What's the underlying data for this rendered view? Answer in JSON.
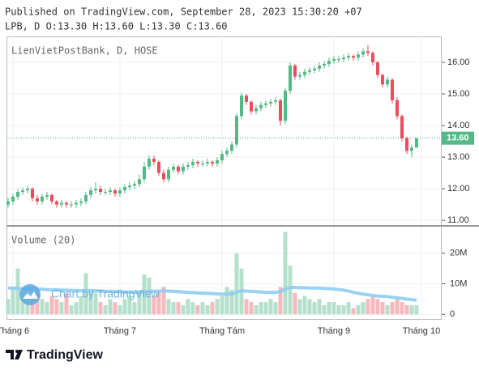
{
  "header": {
    "published": "Published on TradingView.com, September 28, 2023 15:30:20 +07",
    "ohlc": "LPB, D O:13.30 H:13.60 L:13.30 C:13.60"
  },
  "chart_data": {
    "type": "candlestick",
    "title": "LienVietPostBank, D, HOSE",
    "open": [
      11.5,
      11.6,
      11.75,
      11.9,
      11.95,
      12.0,
      11.7,
      11.6,
      11.75,
      11.8,
      11.6,
      11.5,
      11.55,
      11.5,
      11.5,
      11.55,
      11.6,
      11.8,
      11.95,
      12.0,
      11.9,
      11.9,
      11.95,
      11.85,
      11.95,
      12.05,
      12.1,
      12.15,
      12.3,
      12.7,
      12.95,
      12.85,
      12.5,
      12.3,
      12.6,
      12.7,
      12.55,
      12.7,
      12.75,
      12.85,
      12.8,
      12.8,
      12.85,
      12.8,
      12.9,
      13.1,
      13.2,
      13.4,
      14.3,
      14.95,
      14.75,
      14.45,
      14.55,
      14.65,
      14.7,
      14.75,
      14.8,
      14.15,
      15.1,
      15.9,
      15.55,
      15.6,
      15.7,
      15.75,
      15.8,
      15.9,
      15.95,
      16.05,
      16.1,
      16.1,
      16.15,
      16.2,
      16.15,
      16.25,
      16.35,
      16.3,
      16.0,
      15.6,
      15.3,
      15.45,
      14.8,
      14.3,
      13.6,
      13.2,
      13.3
    ],
    "high": [
      11.7,
      11.85,
      12.0,
      12.05,
      12.1,
      12.05,
      11.8,
      11.85,
      11.9,
      11.85,
      11.65,
      11.65,
      11.6,
      11.6,
      11.65,
      11.7,
      11.9,
      12.05,
      12.2,
      12.1,
      12.0,
      12.05,
      12.0,
      12.05,
      12.15,
      12.2,
      12.25,
      12.45,
      12.85,
      13.05,
      13.05,
      12.9,
      12.6,
      12.7,
      12.8,
      12.75,
      12.8,
      12.85,
      12.95,
      12.9,
      12.9,
      12.95,
      12.9,
      13.0,
      13.2,
      13.3,
      13.5,
      14.4,
      15.05,
      15.0,
      14.8,
      14.65,
      14.75,
      14.8,
      14.85,
      14.9,
      14.85,
      15.2,
      16.0,
      15.95,
      15.7,
      15.8,
      15.85,
      15.9,
      16.0,
      16.05,
      16.15,
      16.2,
      16.2,
      16.25,
      16.3,
      16.25,
      16.35,
      16.45,
      16.55,
      16.35,
      16.05,
      15.65,
      15.55,
      15.5,
      14.9,
      14.35,
      13.65,
      13.4,
      13.6
    ],
    "low": [
      11.4,
      11.5,
      11.65,
      11.8,
      11.85,
      11.6,
      11.5,
      11.5,
      11.65,
      11.5,
      11.4,
      11.4,
      11.4,
      11.4,
      11.4,
      11.45,
      11.5,
      11.7,
      11.85,
      11.8,
      11.8,
      11.8,
      11.75,
      11.75,
      11.85,
      11.95,
      12.0,
      12.05,
      12.2,
      12.6,
      12.75,
      12.4,
      12.2,
      12.2,
      12.5,
      12.45,
      12.45,
      12.6,
      12.65,
      12.7,
      12.7,
      12.7,
      12.7,
      12.7,
      12.8,
      13.0,
      13.1,
      13.3,
      14.2,
      14.65,
      14.35,
      14.35,
      14.45,
      14.55,
      14.6,
      14.65,
      14.0,
      14.05,
      15.0,
      15.45,
      15.45,
      15.5,
      15.6,
      15.65,
      15.7,
      15.8,
      15.85,
      15.95,
      16.0,
      16.0,
      16.05,
      16.05,
      16.05,
      16.15,
      16.2,
      15.9,
      15.5,
      15.2,
      15.2,
      14.7,
      14.2,
      13.5,
      13.1,
      13.0,
      13.3
    ],
    "close": [
      11.6,
      11.75,
      11.9,
      11.95,
      12.0,
      11.7,
      11.6,
      11.75,
      11.8,
      11.6,
      11.5,
      11.55,
      11.5,
      11.5,
      11.55,
      11.6,
      11.8,
      11.95,
      12.0,
      11.9,
      11.9,
      11.95,
      11.85,
      11.95,
      12.05,
      12.1,
      12.15,
      12.3,
      12.7,
      12.95,
      12.85,
      12.5,
      12.3,
      12.6,
      12.7,
      12.55,
      12.7,
      12.75,
      12.85,
      12.8,
      12.8,
      12.85,
      12.8,
      12.9,
      13.1,
      13.2,
      13.4,
      14.3,
      14.95,
      14.75,
      14.45,
      14.55,
      14.65,
      14.7,
      14.75,
      14.8,
      14.15,
      15.1,
      15.9,
      15.55,
      15.6,
      15.7,
      15.75,
      15.8,
      15.9,
      15.95,
      16.05,
      16.1,
      16.1,
      16.15,
      16.2,
      16.15,
      16.25,
      16.35,
      16.3,
      16.0,
      15.6,
      15.3,
      15.45,
      14.8,
      14.3,
      13.6,
      13.2,
      13.3,
      13.6
    ],
    "last_value_label": "13.60",
    "up_color": "#53b987",
    "down_color": "#eb4d5c",
    "xlim": [
      -0.33,
      89.17
    ],
    "xticks": [
      {
        "value": 1,
        "label": "Tháng 6"
      },
      {
        "value": 23,
        "label": "Tháng 7"
      },
      {
        "value": 44,
        "label": "Tháng Tám"
      },
      {
        "value": 67,
        "label": "Tháng 9"
      },
      {
        "value": 85,
        "label": "Tháng 10"
      }
    ],
    "ylim": [
      10.85,
      16.82
    ],
    "yticks": [
      {
        "value": 11,
        "label": "11.00"
      },
      {
        "value": 12,
        "label": "12.00"
      },
      {
        "value": 13,
        "label": "13.00"
      },
      {
        "value": 14,
        "label": "14.00"
      },
      {
        "value": 15,
        "label": "15.00"
      },
      {
        "value": 16,
        "label": "16.00"
      }
    ],
    "grid": true,
    "volume_title": "Volume (20)",
    "volume": [
      5,
      9,
      15,
      7,
      5,
      6,
      8,
      5,
      4,
      6,
      5,
      4,
      7,
      3,
      4,
      6,
      13.5,
      8,
      7,
      4,
      3,
      5,
      4,
      3,
      5,
      6,
      4,
      8,
      13,
      12,
      6,
      7,
      9,
      5,
      4,
      4,
      3,
      5,
      4,
      3,
      4,
      3,
      4,
      5,
      6,
      9,
      8,
      20,
      15,
      5,
      4,
      3,
      4,
      4,
      5,
      4,
      9,
      27,
      16,
      7,
      5,
      6,
      5,
      4,
      5,
      3,
      4,
      4,
      3,
      3,
      4,
      2,
      3,
      4,
      5,
      6,
      5,
      4,
      3,
      4,
      5,
      4,
      3,
      3,
      3
    ],
    "volume_ma": [
      8.6,
      8.6,
      8.5,
      8.4,
      8.4,
      8.3,
      8.3,
      8.2,
      8.1,
      8.0,
      8.0,
      7.9,
      7.9,
      7.8,
      7.8,
      7.7,
      7.8,
      7.8,
      7.7,
      7.6,
      7.5,
      7.5,
      7.4,
      7.4,
      7.3,
      7.3,
      7.2,
      7.2,
      7.4,
      7.6,
      7.6,
      7.6,
      7.7,
      7.6,
      7.5,
      7.4,
      7.3,
      7.2,
      7.1,
      7.0,
      6.9,
      6.9,
      6.8,
      6.7,
      6.6,
      6.6,
      6.7,
      7.3,
      7.7,
      7.6,
      7.5,
      7.4,
      7.3,
      7.2,
      7.2,
      7.2,
      7.4,
      8.3,
      8.8,
      8.8,
      8.7,
      8.7,
      8.6,
      8.6,
      8.6,
      8.5,
      8.4,
      8.3,
      8.1,
      7.9,
      7.6,
      7.2,
      6.9,
      6.6,
      6.4,
      6.2,
      6.0,
      5.9,
      5.8,
      5.6,
      5.4,
      5.2,
      5.0,
      4.8,
      4.6
    ],
    "volume_up_color": "#b5e0cb",
    "volume_down_color": "#f6b9be",
    "volume_ma_color": "#8ecdf3",
    "volume_ylim": [
      -1.8,
      28.7
    ],
    "volume_ticks": [
      0,
      {
        "value": 10,
        "label": "10M"
      },
      {
        "value": 20,
        "label": "20M"
      }
    ],
    "watermark": "Chart by TradingView"
  },
  "footer": {
    "brand": "TradingView"
  }
}
